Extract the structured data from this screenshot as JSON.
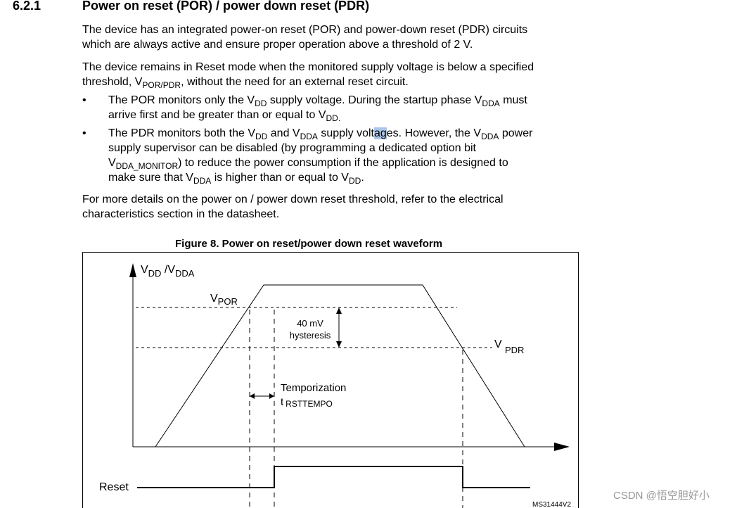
{
  "section": {
    "number": "6.2.1",
    "title": "Power on reset (POR) / power down reset (PDR)"
  },
  "lines": [
    {
      "id": "para1-l1",
      "x": 117,
      "y": 33,
      "segs": [
        {
          "t": "The device has an integrated power-on reset (POR) and power-down reset (PDR) circuits"
        }
      ]
    },
    {
      "id": "para1-l2",
      "x": 117,
      "y": 54,
      "segs": [
        {
          "t": "which are always active and ensure proper operation above a threshold of 2 V."
        }
      ]
    },
    {
      "id": "para2-l1",
      "x": 117,
      "y": 86,
      "segs": [
        {
          "t": "The device remains in Reset mode when the monitored supply voltage is below a specified"
        }
      ]
    },
    {
      "id": "para2-l2",
      "x": 117,
      "y": 107,
      "segs": [
        {
          "t": "threshold, V"
        },
        {
          "t": "POR/PDR",
          "sub": true
        },
        {
          "t": ", without the need for an external reset circuit."
        }
      ]
    },
    {
      "id": "bullet1-l1",
      "x": 154,
      "y": 133,
      "segs": [
        {
          "t": "The POR monitors only the V"
        },
        {
          "t": "DD",
          "sub": true
        },
        {
          "t": " supply voltage. During the startup phase V"
        },
        {
          "t": "DDA",
          "sub": true
        },
        {
          "t": " must"
        }
      ]
    },
    {
      "id": "bullet1-l2",
      "x": 154,
      "y": 154,
      "segs": [
        {
          "t": "arrive first and be greater than or equal to V"
        },
        {
          "t": "DD.",
          "sub": true
        }
      ]
    },
    {
      "id": "bullet2-l1",
      "x": 154,
      "y": 180,
      "segs": [
        {
          "t": "The PDR monitors both the V"
        },
        {
          "t": "DD",
          "sub": true
        },
        {
          "t": " and V"
        },
        {
          "t": "DDA",
          "sub": true
        },
        {
          "t": " supply volt"
        },
        {
          "t": "ag",
          "hl": true
        },
        {
          "t": "es. However, the V"
        },
        {
          "t": "DDA",
          "sub": true
        },
        {
          "t": " power"
        }
      ]
    },
    {
      "id": "bullet2-l2",
      "x": 154,
      "y": 201,
      "segs": [
        {
          "t": "supply supervisor can be disabled (by programming a dedicated option bit"
        }
      ]
    },
    {
      "id": "bullet2-l3",
      "x": 154,
      "y": 222,
      "segs": [
        {
          "t": "V"
        },
        {
          "t": "DDA_MONITOR",
          "sub": true
        },
        {
          "t": ") to reduce the power consumption if the application is designed to"
        }
      ]
    },
    {
      "id": "bullet2-l4",
      "x": 154,
      "y": 243,
      "segs": [
        {
          "t": "make sure that V"
        },
        {
          "t": "DDA",
          "sub": true
        },
        {
          "t": " is higher than or equal to V"
        },
        {
          "t": "DD",
          "sub": true
        },
        {
          "t": "."
        }
      ]
    },
    {
      "id": "para3-l1",
      "x": 117,
      "y": 274,
      "segs": [
        {
          "t": "For more details on the power on / power down reset threshold, refer to the electrical"
        }
      ]
    },
    {
      "id": "para3-l2",
      "x": 117,
      "y": 295,
      "segs": [
        {
          "t": "characteristics section in the datasheet."
        }
      ]
    }
  ],
  "bullet_glyph": "•",
  "figure": {
    "caption": "Figure 8. Power on reset/power down reset waveform",
    "y_axis": {
      "v1": "V",
      "s1": "DD",
      "sep": " /V",
      "s2": "DDA"
    },
    "vpor": {
      "v": "V",
      "sub": "POR"
    },
    "vpdr": {
      "v": "V",
      "sub": "PDR"
    },
    "hysteresis": {
      "value": "40 mV",
      "label": "hysteresis"
    },
    "temporization": {
      "label": "Temporization",
      "t": "t",
      "sub": "RSTTEMPO"
    },
    "reset_label": "Reset",
    "figure_id": "MS31444V2"
  },
  "watermark": "CSDN @悟空胆好小"
}
